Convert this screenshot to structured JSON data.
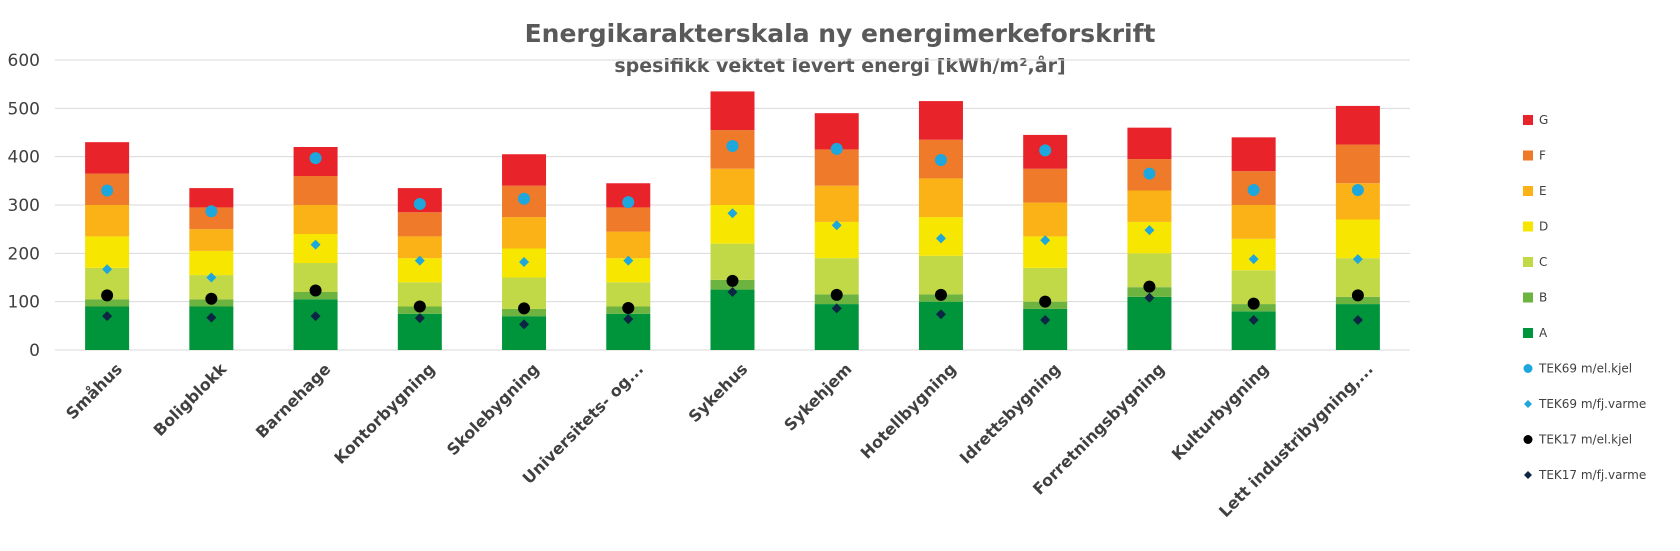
{
  "chart_data": {
    "type": "bar",
    "stacked": true,
    "title": "Energikarakterskala ny energimerkeforskrift",
    "subtitle": "spesifikk vektet levert energi [kWh/m²,år]",
    "xlabel": "",
    "ylabel": "",
    "ylim": [
      0,
      600
    ],
    "yticks": [
      0,
      100,
      200,
      300,
      400,
      500,
      600
    ],
    "grid": true,
    "legend_position": "right",
    "categories": [
      "Småhus",
      "Boligblokk",
      "Barnehage",
      "Kontorbygning",
      "Skolebygning",
      "Universitets- og...",
      "Sykehus",
      "Sykehjem",
      "Hotellbygning",
      "Idrettsbygning",
      "Forretningsbygning",
      "Kulturbygning",
      "Lett industribygning,..."
    ],
    "series": [
      {
        "name": "A",
        "color": "#00953a",
        "values": [
          90,
          90,
          105,
          75,
          70,
          75,
          125,
          95,
          100,
          85,
          110,
          80,
          95
        ]
      },
      {
        "name": "B",
        "color": "#6cb33f",
        "values": [
          15,
          15,
          15,
          15,
          15,
          15,
          20,
          20,
          15,
          15,
          20,
          15,
          15
        ]
      },
      {
        "name": "C",
        "color": "#c2d947",
        "values": [
          65,
          50,
          60,
          50,
          65,
          50,
          75,
          75,
          80,
          70,
          70,
          70,
          80
        ]
      },
      {
        "name": "D",
        "color": "#f7e600",
        "values": [
          65,
          50,
          60,
          50,
          60,
          50,
          80,
          75,
          80,
          65,
          65,
          65,
          80
        ]
      },
      {
        "name": "E",
        "color": "#fbb217",
        "values": [
          65,
          45,
          60,
          45,
          65,
          55,
          75,
          75,
          80,
          70,
          65,
          70,
          75
        ]
      },
      {
        "name": "F",
        "color": "#ef7a2a",
        "values": [
          65,
          45,
          60,
          50,
          65,
          50,
          80,
          75,
          80,
          70,
          65,
          70,
          80
        ]
      },
      {
        "name": "G",
        "color": "#e8232a",
        "values": [
          65,
          40,
          60,
          50,
          65,
          50,
          80,
          75,
          80,
          70,
          65,
          70,
          80
        ]
      }
    ],
    "markers": [
      {
        "name": "TEK69 m/el.kjel",
        "color": "#1ea7dc",
        "shape": "circle",
        "values": [
          330,
          287,
          397,
          302,
          313,
          306,
          422,
          416,
          393,
          413,
          365,
          331,
          331
        ]
      },
      {
        "name": "TEK69 m/fj.varme",
        "color": "#1ea7dc",
        "shape": "diamond",
        "values": [
          167,
          150,
          218,
          185,
          182,
          185,
          283,
          258,
          231,
          227,
          248,
          188,
          188
        ]
      },
      {
        "name": "TEK17 m/el.kjel",
        "color": "#000000",
        "shape": "circle",
        "values": [
          113,
          106,
          123,
          90,
          86,
          87,
          143,
          114,
          114,
          100,
          131,
          96,
          113
        ]
      },
      {
        "name": "TEK17 m/fj.varme",
        "color": "#0d2644",
        "shape": "diamond",
        "values": [
          70,
          67,
          70,
          66,
          53,
          64,
          120,
          86,
          74,
          62,
          108,
          62,
          62
        ]
      }
    ]
  }
}
